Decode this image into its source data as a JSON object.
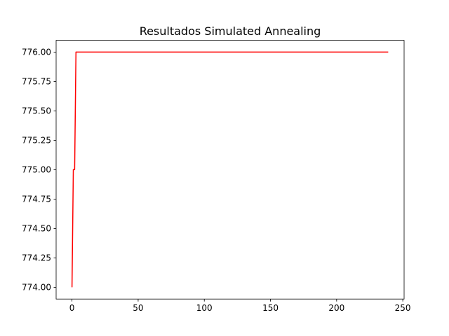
{
  "chart_data": {
    "type": "line",
    "title": "Resultados Simulated Annealing",
    "xlabel": "",
    "ylabel": "",
    "xlim": [
      -12,
      251
    ],
    "ylim": [
      773.9,
      776.1
    ],
    "x_ticks": [
      0,
      50,
      100,
      150,
      200,
      250
    ],
    "x_tick_labels": [
      "0",
      "50",
      "100",
      "150",
      "200",
      "250"
    ],
    "y_ticks": [
      774.0,
      774.25,
      774.5,
      774.75,
      775.0,
      775.25,
      775.5,
      775.75,
      776.0
    ],
    "y_tick_labels": [
      "774.00",
      "774.25",
      "774.50",
      "774.75",
      "775.00",
      "775.25",
      "775.50",
      "775.75",
      "776.00"
    ],
    "grid": false,
    "legend": false,
    "series": [
      {
        "color": "#ff0000",
        "x": [
          0,
          1,
          2,
          3,
          239
        ],
        "y": [
          774.0,
          775.0,
          775.0,
          776.0,
          776.0
        ]
      }
    ]
  }
}
